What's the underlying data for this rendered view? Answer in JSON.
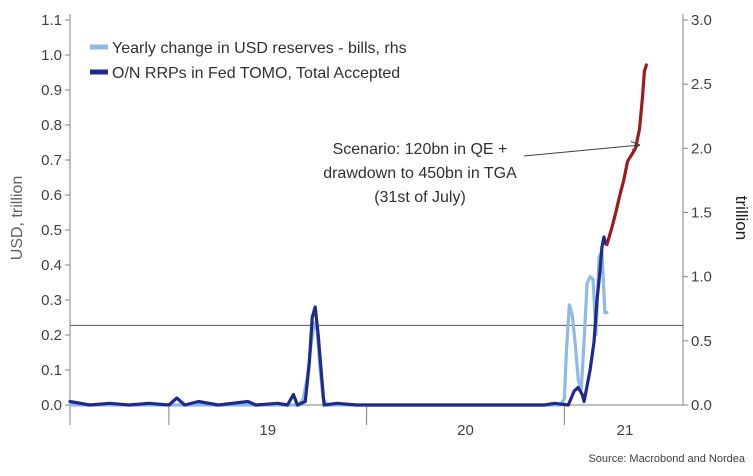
{
  "chart_data": {
    "type": "line",
    "ylabel_left": "USD, trillion",
    "ylabel_right": "trillion",
    "left_axis": {
      "min": 0.0,
      "max": 1.1,
      "ticks": [
        "0.0",
        "0.1",
        "0.2",
        "0.3",
        "0.4",
        "0.5",
        "0.6",
        "0.7",
        "0.8",
        "0.9",
        "1.0",
        "1.1"
      ]
    },
    "right_axis": {
      "min": 0.0,
      "max": 3.0,
      "ticks": [
        "0.0",
        "0.5",
        "1.0",
        "1.5",
        "2.0",
        "2.5",
        "3.0"
      ]
    },
    "x_axis": {
      "min": 2018.5,
      "max": 2021.6,
      "boundaries": [
        2019,
        2020,
        2021
      ],
      "labels": [
        {
          "label": "19",
          "x": 2019.5
        },
        {
          "label": "20",
          "x": 2020.5
        },
        {
          "label": "21",
          "x": 2021.5
        }
      ]
    },
    "reference_line_right": 0.62,
    "legend_position": "top-left",
    "source": "Source: Macrobond and Nordea",
    "annotation": {
      "lines": [
        "Scenario: 120bn in QE +",
        "drawdown to 450bn in TGA",
        "(31st of July)"
      ]
    },
    "series": [
      {
        "name": "Yearly change in USD reserves - bills, rhs",
        "axis": "right",
        "color": "#8fb9e6",
        "points": [
          [
            2018.5,
            0.0
          ],
          [
            2019.0,
            0.0
          ],
          [
            2019.5,
            0.0
          ],
          [
            2019.6,
            0.0
          ],
          [
            2019.66,
            0.0
          ],
          [
            2019.68,
            0.05
          ],
          [
            2019.7,
            0.22
          ],
          [
            2019.72,
            0.48
          ],
          [
            2019.735,
            0.64
          ],
          [
            2019.75,
            0.58
          ],
          [
            2019.765,
            0.28
          ],
          [
            2019.78,
            0.05
          ],
          [
            2019.8,
            0.0
          ],
          [
            2019.9,
            0.0
          ],
          [
            2020.0,
            0.0
          ],
          [
            2020.5,
            0.0
          ],
          [
            2020.98,
            0.0
          ],
          [
            2021.0,
            0.05
          ],
          [
            2021.01,
            0.4
          ],
          [
            2021.025,
            0.78
          ],
          [
            2021.04,
            0.7
          ],
          [
            2021.055,
            0.48
          ],
          [
            2021.07,
            0.2
          ],
          [
            2021.085,
            0.12
          ],
          [
            2021.1,
            0.5
          ],
          [
            2021.115,
            0.95
          ],
          [
            2021.13,
            1.0
          ],
          [
            2021.145,
            0.98
          ],
          [
            2021.16,
            0.55
          ],
          [
            2021.175,
            1.15
          ],
          [
            2021.19,
            1.2
          ],
          [
            2021.205,
            0.72
          ],
          [
            2021.215,
            0.72
          ]
        ]
      },
      {
        "name": "O/N RRPs in Fed TOMO, Total Accepted",
        "axis": "left",
        "color": "#1e2b8c",
        "points": [
          [
            2018.5,
            0.01
          ],
          [
            2018.6,
            0.0
          ],
          [
            2018.7,
            0.005
          ],
          [
            2018.8,
            0.0
          ],
          [
            2018.9,
            0.005
          ],
          [
            2019.0,
            0.0
          ],
          [
            2019.04,
            0.02
          ],
          [
            2019.08,
            0.0
          ],
          [
            2019.15,
            0.01
          ],
          [
            2019.25,
            0.0
          ],
          [
            2019.4,
            0.01
          ],
          [
            2019.44,
            0.0
          ],
          [
            2019.55,
            0.005
          ],
          [
            2019.6,
            0.0
          ],
          [
            2019.63,
            0.03
          ],
          [
            2019.65,
            0.0
          ],
          [
            2019.69,
            0.01
          ],
          [
            2019.71,
            0.12
          ],
          [
            2019.725,
            0.25
          ],
          [
            2019.74,
            0.28
          ],
          [
            2019.755,
            0.2
          ],
          [
            2019.77,
            0.1
          ],
          [
            2019.785,
            0.0
          ],
          [
            2019.85,
            0.005
          ],
          [
            2019.95,
            0.0
          ],
          [
            2020.1,
            0.0
          ],
          [
            2020.5,
            0.0
          ],
          [
            2020.9,
            0.0
          ],
          [
            2020.95,
            0.005
          ],
          [
            2021.02,
            0.0
          ],
          [
            2021.05,
            0.04
          ],
          [
            2021.07,
            0.05
          ],
          [
            2021.09,
            0.03
          ],
          [
            2021.1,
            0.01
          ],
          [
            2021.13,
            0.1
          ],
          [
            2021.15,
            0.18
          ],
          [
            2021.165,
            0.3
          ],
          [
            2021.18,
            0.38
          ],
          [
            2021.19,
            0.45
          ],
          [
            2021.2,
            0.48
          ],
          [
            2021.21,
            0.46
          ]
        ]
      },
      {
        "name": "Scenario",
        "axis": "right",
        "color": "#9a1c1c",
        "points": [
          [
            2021.215,
            1.25
          ],
          [
            2021.24,
            1.38
          ],
          [
            2021.26,
            1.5
          ],
          [
            2021.28,
            1.63
          ],
          [
            2021.3,
            1.75
          ],
          [
            2021.32,
            1.9
          ],
          [
            2021.34,
            1.95
          ],
          [
            2021.36,
            2.0
          ],
          [
            2021.38,
            2.15
          ],
          [
            2021.395,
            2.4
          ],
          [
            2021.405,
            2.6
          ],
          [
            2021.415,
            2.65
          ]
        ]
      }
    ]
  }
}
